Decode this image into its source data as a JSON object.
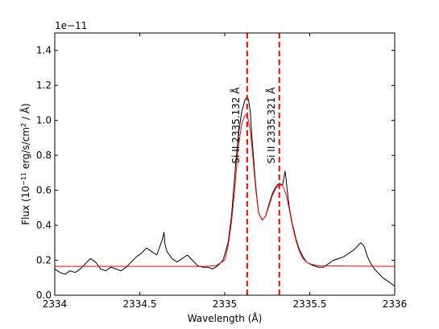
{
  "chart_data": {
    "type": "line",
    "xlabel": "Wavelength (Å)",
    "ylabel_parts": {
      "flux": "Flux (10",
      "exp": "−11",
      "unit": " erg/s/cm",
      "sq": "2",
      "end": " / Å)"
    },
    "offset_label": "1e−11",
    "xlim": [
      2334.0,
      2336.0
    ],
    "ylim": [
      0.0,
      1.5
    ],
    "x_ticks": [
      2334.0,
      2334.5,
      2335.0,
      2335.5,
      2336.0
    ],
    "x_tick_labels": [
      "2334",
      "2334.5",
      "2335",
      "2335.5",
      "2336"
    ],
    "y_ticks": [
      0.0,
      0.2,
      0.4,
      0.6,
      0.8,
      1.0,
      1.2,
      1.4
    ],
    "y_tick_labels": [
      "0.0",
      "0.2",
      "0.4",
      "0.6",
      "0.8",
      "1.0",
      "1.2",
      "1.4"
    ],
    "grid": false,
    "lines_vertical": [
      {
        "x": 2335.132,
        "label": "Si II   2335.132 Å",
        "color": "#ff0000",
        "style": "dashed"
      },
      {
        "x": 2335.321,
        "label": "Si II   2335.321 Å",
        "color": "#ff0000",
        "style": "dashed"
      }
    ],
    "series": [
      {
        "color": "#000000",
        "x": [
          2334.0,
          2334.03,
          2334.06,
          2334.09,
          2334.12,
          2334.15,
          2334.18,
          2334.21,
          2334.24,
          2334.27,
          2334.3,
          2334.33,
          2334.36,
          2334.39,
          2334.42,
          2334.45,
          2334.48,
          2334.51,
          2334.54,
          2334.57,
          2334.6,
          2334.63,
          2334.643,
          2334.647,
          2334.66,
          2334.69,
          2334.72,
          2334.75,
          2334.78,
          2334.81,
          2334.84,
          2334.87,
          2334.9,
          2334.93,
          2334.96,
          2334.99,
          2335.02,
          2335.04,
          2335.06,
          2335.08,
          2335.1,
          2335.12,
          2335.13,
          2335.14,
          2335.15,
          2335.16,
          2335.17,
          2335.18,
          2335.19,
          2335.2,
          2335.22,
          2335.24,
          2335.26,
          2335.28,
          2335.3,
          2335.32,
          2335.34,
          2335.35,
          2335.355,
          2335.36,
          2335.37,
          2335.38,
          2335.4,
          2335.42,
          2335.44,
          2335.46,
          2335.48,
          2335.5,
          2335.52,
          2335.55,
          2335.58,
          2335.61,
          2335.64,
          2335.67,
          2335.7,
          2335.73,
          2335.76,
          2335.78,
          2335.8,
          2335.82,
          2335.84,
          2335.86,
          2335.88,
          2335.9,
          2335.93,
          2335.96,
          2335.99,
          2336.0
        ],
        "y": [
          0.15,
          0.13,
          0.12,
          0.14,
          0.13,
          0.15,
          0.18,
          0.21,
          0.19,
          0.15,
          0.14,
          0.16,
          0.15,
          0.14,
          0.16,
          0.19,
          0.22,
          0.24,
          0.27,
          0.25,
          0.23,
          0.31,
          0.36,
          0.3,
          0.25,
          0.21,
          0.19,
          0.21,
          0.23,
          0.2,
          0.17,
          0.16,
          0.16,
          0.15,
          0.17,
          0.2,
          0.3,
          0.45,
          0.7,
          0.92,
          1.05,
          1.12,
          1.13,
          1.12,
          1.05,
          0.9,
          0.78,
          0.65,
          0.55,
          0.47,
          0.43,
          0.45,
          0.52,
          0.58,
          0.62,
          0.64,
          0.63,
          0.68,
          0.71,
          0.67,
          0.58,
          0.5,
          0.4,
          0.32,
          0.26,
          0.22,
          0.19,
          0.18,
          0.17,
          0.16,
          0.16,
          0.18,
          0.2,
          0.21,
          0.22,
          0.24,
          0.26,
          0.28,
          0.3,
          0.28,
          0.22,
          0.18,
          0.15,
          0.13,
          0.1,
          0.08,
          0.06,
          0.05
        ]
      },
      {
        "color": "#ff0000",
        "x": [
          2334.0,
          2334.5,
          2334.9,
          2334.95,
          2335.0,
          2335.02,
          2335.04,
          2335.06,
          2335.08,
          2335.1,
          2335.12,
          2335.13,
          2335.14,
          2335.15,
          2335.16,
          2335.17,
          2335.18,
          2335.19,
          2335.2,
          2335.22,
          2335.24,
          2335.26,
          2335.28,
          2335.3,
          2335.32,
          2335.34,
          2335.36,
          2335.38,
          2335.4,
          2335.42,
          2335.44,
          2335.46,
          2335.48,
          2335.5,
          2335.55,
          2336.0
        ],
        "y": [
          0.165,
          0.165,
          0.165,
          0.17,
          0.2,
          0.28,
          0.42,
          0.62,
          0.85,
          0.98,
          1.03,
          1.03,
          1.0,
          0.94,
          0.85,
          0.74,
          0.63,
          0.54,
          0.47,
          0.43,
          0.45,
          0.51,
          0.57,
          0.61,
          0.63,
          0.63,
          0.58,
          0.49,
          0.39,
          0.31,
          0.25,
          0.21,
          0.19,
          0.18,
          0.168,
          0.165
        ]
      }
    ]
  }
}
